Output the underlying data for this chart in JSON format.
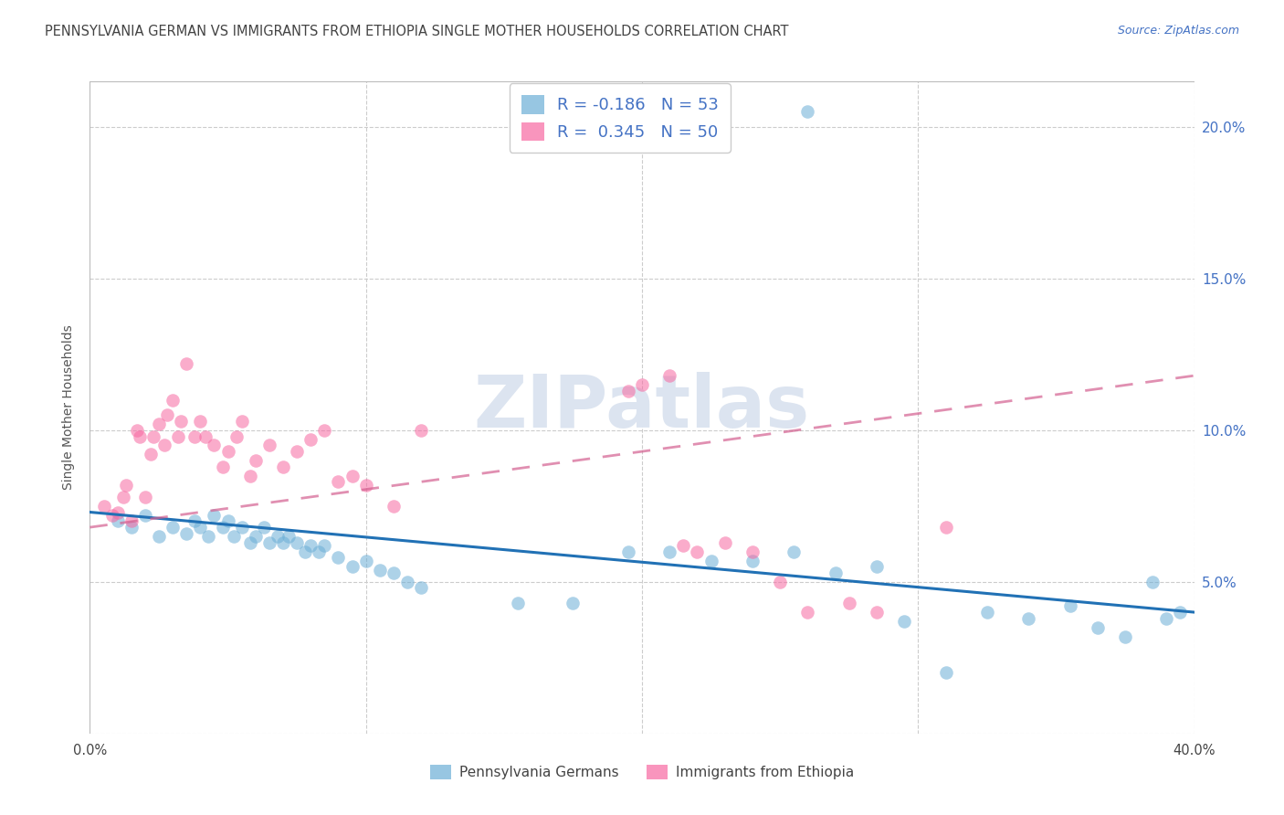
{
  "title": "PENNSYLVANIA GERMAN VS IMMIGRANTS FROM ETHIOPIA SINGLE MOTHER HOUSEHOLDS CORRELATION CHART",
  "source": "Source: ZipAtlas.com",
  "ylabel": "Single Mother Households",
  "yticks": [
    0.0,
    0.05,
    0.1,
    0.15,
    0.2
  ],
  "ytick_labels": [
    "",
    "5.0%",
    "10.0%",
    "15.0%",
    "20.0%"
  ],
  "xtick_labels": [
    "0.0%",
    "40.0%"
  ],
  "xticks": [
    0.0,
    0.4
  ],
  "xlim": [
    0.0,
    0.4
  ],
  "ylim": [
    0.0,
    0.215
  ],
  "watermark": "ZIPatlas",
  "legend1_r": "-0.186",
  "legend1_n": "53",
  "legend2_r": "0.345",
  "legend2_n": "50",
  "series1_label": "Pennsylvania Germans",
  "series2_label": "Immigrants from Ethiopia",
  "series1_color": "#6baed6",
  "series2_color": "#f768a1",
  "trend1_color": "#2171b5",
  "trend2_color": "#d46090",
  "title_color": "#444444",
  "source_color": "#4472c4",
  "tick_color": "#4472c4",
  "ylabel_color": "#555555",
  "watermark_color": "#dce4f0",
  "grid_color": "#cccccc",
  "background_color": "#ffffff",
  "blue_x": [
    0.01,
    0.015,
    0.02,
    0.025,
    0.03,
    0.035,
    0.038,
    0.04,
    0.043,
    0.045,
    0.048,
    0.05,
    0.052,
    0.055,
    0.058,
    0.06,
    0.063,
    0.065,
    0.068,
    0.07,
    0.072,
    0.075,
    0.078,
    0.08,
    0.083,
    0.085,
    0.09,
    0.095,
    0.1,
    0.105,
    0.11,
    0.115,
    0.12,
    0.155,
    0.175,
    0.195,
    0.21,
    0.225,
    0.24,
    0.255,
    0.27,
    0.285,
    0.295,
    0.31,
    0.325,
    0.34,
    0.355,
    0.365,
    0.375,
    0.385,
    0.39,
    0.395,
    0.26
  ],
  "blue_y": [
    0.07,
    0.068,
    0.072,
    0.065,
    0.068,
    0.066,
    0.07,
    0.068,
    0.065,
    0.072,
    0.068,
    0.07,
    0.065,
    0.068,
    0.063,
    0.065,
    0.068,
    0.063,
    0.065,
    0.063,
    0.065,
    0.063,
    0.06,
    0.062,
    0.06,
    0.062,
    0.058,
    0.055,
    0.057,
    0.054,
    0.053,
    0.05,
    0.048,
    0.043,
    0.043,
    0.06,
    0.06,
    0.057,
    0.057,
    0.06,
    0.053,
    0.055,
    0.037,
    0.02,
    0.04,
    0.038,
    0.042,
    0.035,
    0.032,
    0.05,
    0.038,
    0.04,
    0.205
  ],
  "pink_x": [
    0.005,
    0.008,
    0.01,
    0.012,
    0.013,
    0.015,
    0.017,
    0.018,
    0.02,
    0.022,
    0.023,
    0.025,
    0.027,
    0.028,
    0.03,
    0.032,
    0.033,
    0.035,
    0.038,
    0.04,
    0.042,
    0.045,
    0.048,
    0.05,
    0.053,
    0.055,
    0.058,
    0.06,
    0.065,
    0.07,
    0.075,
    0.08,
    0.085,
    0.09,
    0.095,
    0.1,
    0.11,
    0.12,
    0.195,
    0.2,
    0.21,
    0.215,
    0.22,
    0.23,
    0.24,
    0.25,
    0.26,
    0.275,
    0.285,
    0.31
  ],
  "pink_y": [
    0.075,
    0.072,
    0.073,
    0.078,
    0.082,
    0.07,
    0.1,
    0.098,
    0.078,
    0.092,
    0.098,
    0.102,
    0.095,
    0.105,
    0.11,
    0.098,
    0.103,
    0.122,
    0.098,
    0.103,
    0.098,
    0.095,
    0.088,
    0.093,
    0.098,
    0.103,
    0.085,
    0.09,
    0.095,
    0.088,
    0.093,
    0.097,
    0.1,
    0.083,
    0.085,
    0.082,
    0.075,
    0.1,
    0.113,
    0.115,
    0.118,
    0.062,
    0.06,
    0.063,
    0.06,
    0.05,
    0.04,
    0.043,
    0.04,
    0.068
  ],
  "trend1_x_start": 0.0,
  "trend1_x_end": 0.4,
  "trend1_y_start": 0.073,
  "trend1_y_end": 0.04,
  "trend2_x_start": 0.0,
  "trend2_x_end": 0.4,
  "trend2_y_start": 0.068,
  "trend2_y_end": 0.118
}
